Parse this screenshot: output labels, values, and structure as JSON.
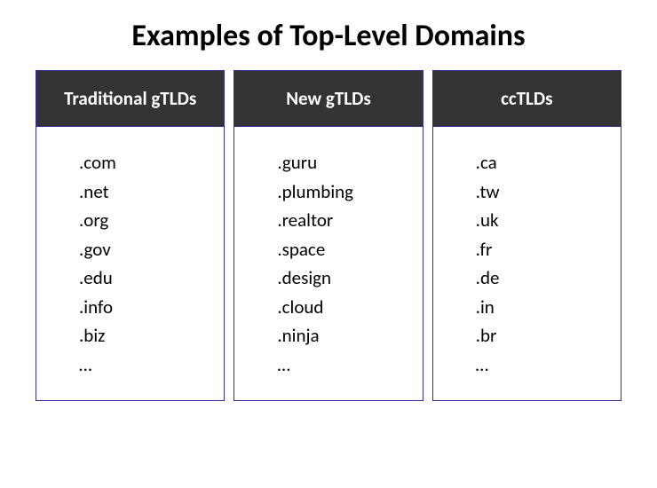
{
  "title": "Examples of Top-Level Domains",
  "title_fontsize": 34,
  "header_bg": "#333333",
  "header_fg": "#ffffff",
  "header_fontsize": 21,
  "body_bg": "#ffffff",
  "body_fg": "#000000",
  "item_fontsize": 21,
  "border_color": "#2e2ea0",
  "ellipsis": "…",
  "columns": [
    {
      "header": "Traditional gTLDs",
      "items": [
        ".com",
        ".net",
        ".org",
        ".gov",
        ".edu",
        ".info",
        ".biz",
        "…"
      ]
    },
    {
      "header": "New gTLDs",
      "items": [
        ".guru",
        ".plumbing",
        ".realtor",
        ".space",
        ".design",
        ".cloud",
        ".ninja",
        "…"
      ]
    },
    {
      "header": "ccTLDs",
      "items": [
        ".ca",
        ".tw",
        ".uk",
        ".fr",
        ".de",
        ".in",
        ".br",
        "…"
      ]
    }
  ]
}
